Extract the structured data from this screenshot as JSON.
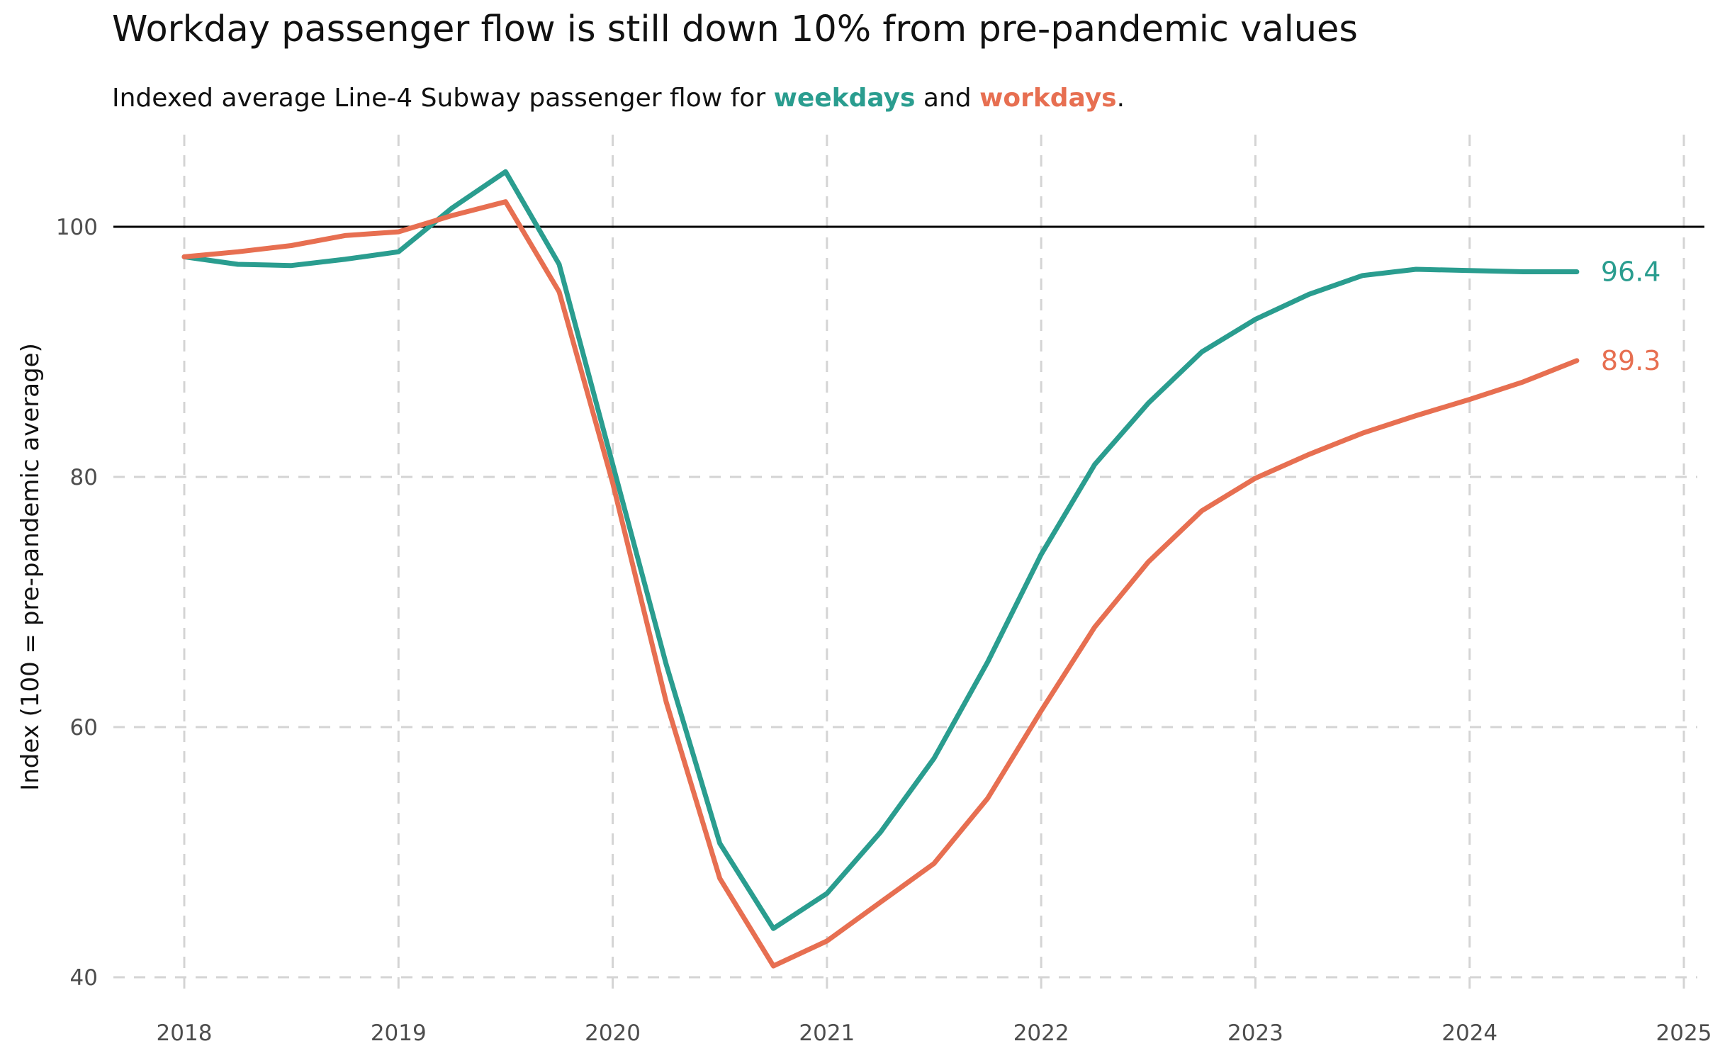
{
  "chart_data": {
    "type": "line",
    "title": "Workday passenger flow is still down 10% from pre-pandemic values",
    "subtitle": {
      "prefix": "Indexed average Line-4 Subway passenger flow for ",
      "highlight1": "weekdays",
      "middle": " and ",
      "highlight2": "workdays",
      "suffix": "."
    },
    "ylabel": "Index (100 = pre-pandemic average)",
    "xlabel": "",
    "xlim": [
      2018,
      2025
    ],
    "ylim": [
      40,
      105
    ],
    "x_ticks": [
      2018,
      2019,
      2020,
      2021,
      2022,
      2023,
      2024,
      2025
    ],
    "y_ticks": [
      40,
      60,
      80,
      100
    ],
    "reference_line": 100,
    "grid": "dashed vertical and horizontal",
    "series": [
      {
        "name": "weekdays",
        "color": "#2a9d8f",
        "end_label": "96.4",
        "points": [
          [
            2018.0,
            97.6
          ],
          [
            2018.25,
            97.0
          ],
          [
            2018.5,
            96.9
          ],
          [
            2018.75,
            97.4
          ],
          [
            2019.0,
            98.0
          ],
          [
            2019.25,
            101.5
          ],
          [
            2019.5,
            104.4
          ],
          [
            2019.75,
            97.0
          ],
          [
            2020.0,
            81.0
          ],
          [
            2020.25,
            65.0
          ],
          [
            2020.5,
            50.7
          ],
          [
            2020.75,
            43.9
          ],
          [
            2021.0,
            46.7
          ],
          [
            2021.25,
            51.6
          ],
          [
            2021.5,
            57.5
          ],
          [
            2021.75,
            65.2
          ],
          [
            2022.0,
            73.8
          ],
          [
            2022.25,
            81.0
          ],
          [
            2022.5,
            85.9
          ],
          [
            2022.75,
            90.0
          ],
          [
            2023.0,
            92.6
          ],
          [
            2023.25,
            94.6
          ],
          [
            2023.5,
            96.1
          ],
          [
            2023.75,
            96.6
          ],
          [
            2024.0,
            96.5
          ],
          [
            2024.25,
            96.4
          ],
          [
            2024.5,
            96.4
          ]
        ]
      },
      {
        "name": "workdays",
        "color": "#e76f51",
        "end_label": "89.3",
        "points": [
          [
            2018.0,
            97.6
          ],
          [
            2018.25,
            98.0
          ],
          [
            2018.5,
            98.5
          ],
          [
            2018.75,
            99.3
          ],
          [
            2019.0,
            99.6
          ],
          [
            2019.25,
            100.9
          ],
          [
            2019.5,
            102.0
          ],
          [
            2019.75,
            94.8
          ],
          [
            2020.0,
            79.5
          ],
          [
            2020.25,
            62.0
          ],
          [
            2020.5,
            47.9
          ],
          [
            2020.75,
            40.9
          ],
          [
            2021.0,
            42.9
          ],
          [
            2021.25,
            46.0
          ],
          [
            2021.5,
            49.1
          ],
          [
            2021.75,
            54.3
          ],
          [
            2022.0,
            61.3
          ],
          [
            2022.25,
            68.0
          ],
          [
            2022.5,
            73.2
          ],
          [
            2022.75,
            77.3
          ],
          [
            2023.0,
            79.9
          ],
          [
            2023.25,
            81.8
          ],
          [
            2023.5,
            83.5
          ],
          [
            2023.75,
            84.9
          ],
          [
            2024.0,
            86.2
          ],
          [
            2024.25,
            87.6
          ],
          [
            2024.5,
            89.3
          ]
        ]
      }
    ]
  }
}
